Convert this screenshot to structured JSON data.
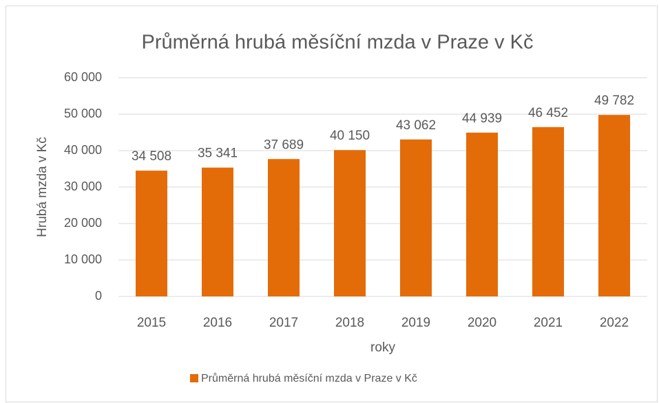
{
  "chart_data": {
    "type": "bar",
    "title": "Průměrná hrubá měsíční mzda v Praze v Kč",
    "x_label": "roky",
    "y_label": "Hrubá mzda v Kč",
    "categories": [
      "2015",
      "2016",
      "2017",
      "2018",
      "2019",
      "2020",
      "2021",
      "2022"
    ],
    "series": [
      {
        "name": "Průměrná hrubá měsíční mzda v Praze v Kč",
        "color": "#e36c09",
        "values": [
          34508,
          35341,
          37689,
          40150,
          43062,
          44939,
          46452,
          49782
        ],
        "value_labels": [
          "34 508",
          "35 341",
          "37 689",
          "40 150",
          "43 062",
          "44 939",
          "46 452",
          "49 782"
        ]
      }
    ],
    "ylim": [
      0,
      60000
    ],
    "yticks": [
      0,
      {
        "value": 10000,
        "label": "10 000"
      },
      {
        "value": 20000,
        "label": "20 000"
      },
      {
        "value": 30000,
        "label": "30 000"
      },
      {
        "value": 40000,
        "label": "40 000"
      },
      {
        "value": 50000,
        "label": "50 000"
      },
      {
        "value": 60000,
        "label": "60 000"
      }
    ],
    "grid": true,
    "legend": "bottom"
  }
}
